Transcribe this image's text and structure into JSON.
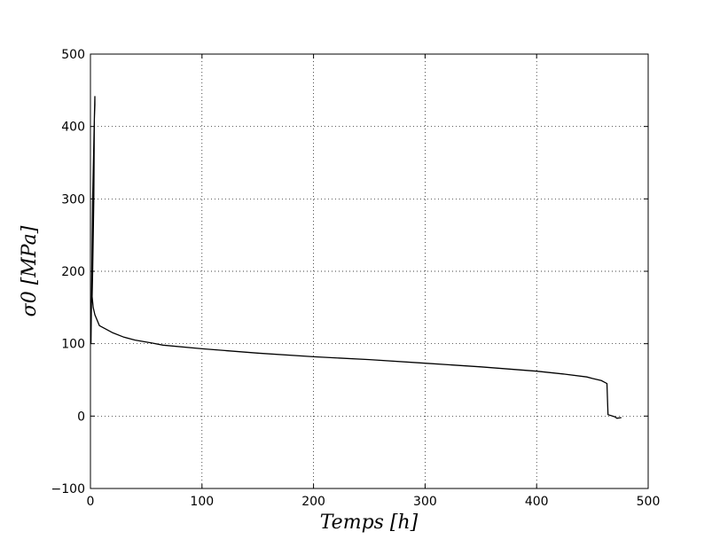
{
  "chart_data": {
    "type": "line",
    "title": "",
    "xlabel": "Temps [h]",
    "ylabel": "σ0 [MPa]",
    "xlim": [
      0,
      500
    ],
    "ylim": [
      -100,
      500
    ],
    "xticks": [
      0,
      100,
      200,
      300,
      400,
      500
    ],
    "yticks": [
      -100,
      0,
      100,
      200,
      300,
      400,
      500
    ],
    "xtick_labels": [
      "0",
      "100",
      "200",
      "300",
      "400",
      "500"
    ],
    "ytick_labels": [
      "−100",
      "0",
      "100",
      "200",
      "300",
      "400",
      "500"
    ],
    "grid": true,
    "line_color": "#000000",
    "series": [
      {
        "x": [
          0.5,
          2,
          3.5,
          4,
          4,
          3.5,
          3,
          2,
          1.5,
          2.5,
          4,
          8,
          14,
          20,
          30,
          40,
          55,
          65,
          100,
          150,
          200,
          250,
          300,
          350,
          400,
          425,
          445,
          450,
          458,
          463,
          464,
          470,
          472,
          476
        ],
        "y": [
          100,
          300,
          410,
          430,
          442,
          410,
          300,
          200,
          165,
          150,
          140,
          125,
          120,
          115,
          109,
          105,
          101,
          98,
          93,
          87,
          82,
          78,
          73,
          68,
          62,
          58,
          54,
          52,
          49,
          45,
          2,
          -1,
          -3,
          -2
        ]
      }
    ]
  }
}
